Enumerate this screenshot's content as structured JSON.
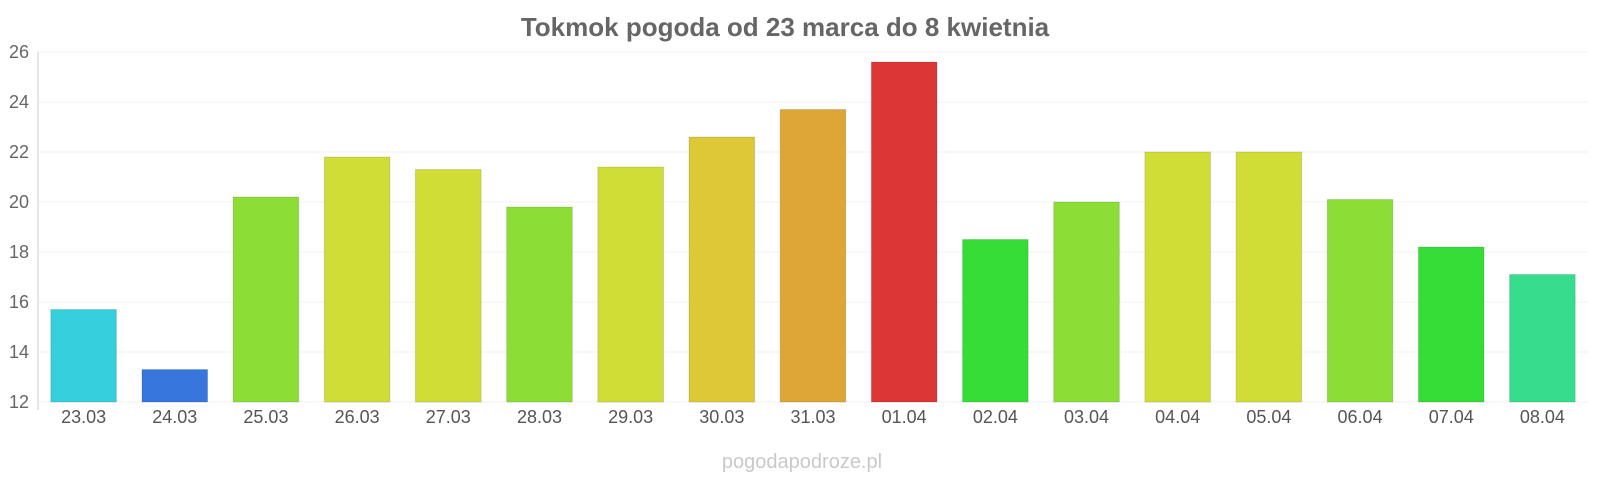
{
  "chart_data": {
    "type": "bar",
    "title": "Tokmok pogoda od 23 marca do 8 kwietnia",
    "xlabel": "",
    "ylabel": "",
    "ylim": [
      12,
      26
    ],
    "yticks": [
      12,
      14,
      16,
      18,
      20,
      22,
      24,
      26
    ],
    "grid": true,
    "categories": [
      "23.03",
      "24.03",
      "25.03",
      "26.03",
      "27.03",
      "28.03",
      "29.03",
      "30.03",
      "31.03",
      "01.04",
      "02.04",
      "03.04",
      "04.04",
      "05.04",
      "06.04",
      "07.04",
      "08.04"
    ],
    "values": [
      15.7,
      13.3,
      20.2,
      21.8,
      21.3,
      19.8,
      21.4,
      22.6,
      23.7,
      25.6,
      18.5,
      20.0,
      22.0,
      22.0,
      20.1,
      18.2,
      17.1
    ],
    "colors": [
      "#36cfdd",
      "#3676dd",
      "#8cdd36",
      "#cfdd36",
      "#cfdd36",
      "#8cdd36",
      "#cfdd36",
      "#ddc836",
      "#dda636",
      "#dd3636",
      "#36dd36",
      "#8cdd36",
      "#cfdd36",
      "#cfdd36",
      "#8cdd36",
      "#36dd36",
      "#36dd8c"
    ]
  },
  "watermark": "pogodapodroze.pl"
}
